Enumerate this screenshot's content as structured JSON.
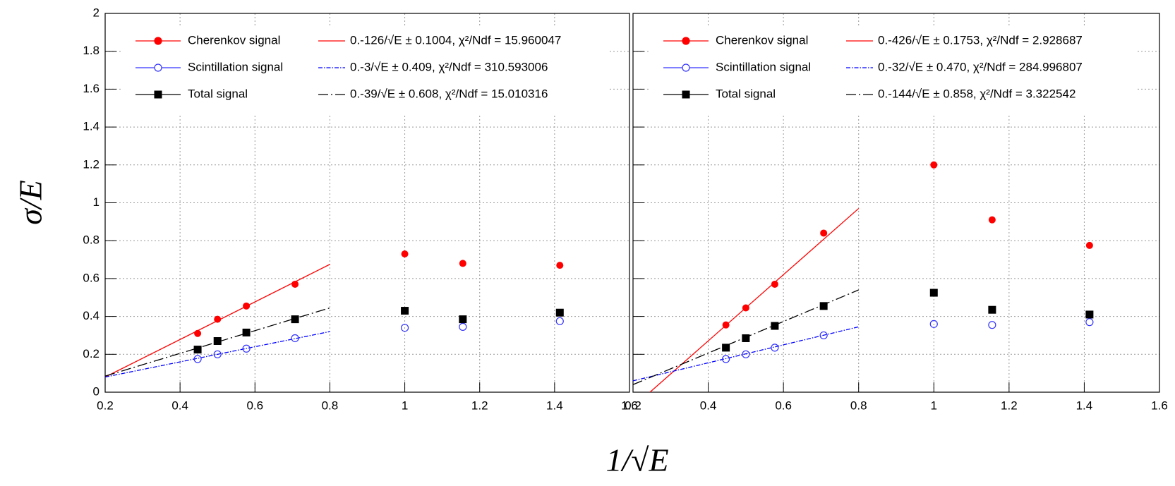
{
  "chart_data": [
    {
      "type": "scatter",
      "xlabel": "1/√E",
      "ylabel": "σ/E",
      "xlim": [
        0.2,
        1.6
      ],
      "ylim": [
        0,
        2
      ],
      "xticks": [
        0.2,
        0.4,
        0.6,
        0.8,
        1,
        1.2,
        1.4,
        1.6
      ],
      "yticks": [
        0,
        0.2,
        0.4,
        0.6,
        0.8,
        1,
        1.2,
        1.4,
        1.6,
        1.8,
        2
      ],
      "grid": true,
      "series": [
        {
          "name": "Cherenkov signal",
          "color": "#ff0000",
          "marker": "filled-circle",
          "x": [
            0.447,
            0.5,
            0.577,
            0.707,
            1.0,
            1.155,
            1.414
          ],
          "values": [
            0.31,
            0.385,
            0.455,
            0.57,
            0.73,
            0.68,
            0.67
          ]
        },
        {
          "name": "Scintillation signal",
          "color": "#3333ff",
          "marker": "open-circle",
          "x": [
            0.447,
            0.5,
            0.577,
            0.707,
            1.0,
            1.155,
            1.414
          ],
          "values": [
            0.175,
            0.2,
            0.23,
            0.285,
            0.34,
            0.345,
            0.375
          ]
        },
        {
          "name": "Total signal",
          "color": "#000000",
          "marker": "square",
          "x": [
            0.447,
            0.5,
            0.577,
            0.707,
            1.0,
            1.155,
            1.414
          ],
          "values": [
            0.225,
            0.27,
            0.315,
            0.385,
            0.43,
            0.385,
            0.42
          ]
        }
      ],
      "fits": [
        {
          "name": "0.-126/√E ± 0.1004, χ²/Ndf = 15.960047",
          "color": "#ff0000",
          "dash": "solid",
          "x": [
            0.2,
            0.8
          ],
          "values": [
            0.08,
            0.675
          ]
        },
        {
          "name": "0.-3/√E ± 0.409, χ²/Ndf = 310.593006",
          "color": "#0000ff",
          "dash": "dash-dot",
          "x": [
            0.2,
            0.8
          ],
          "values": [
            0.08,
            0.32
          ]
        },
        {
          "name": "0.-39/√E ± 0.608, χ²/Ndf = 15.010316",
          "color": "#000000",
          "dash": "long-dash-dot",
          "x": [
            0.2,
            0.8
          ],
          "values": [
            0.085,
            0.445
          ]
        }
      ]
    },
    {
      "type": "scatter",
      "xlim": [
        0.2,
        1.6
      ],
      "ylim": [
        0,
        2
      ],
      "xticks": [
        0.2,
        0.4,
        0.6,
        0.8,
        1,
        1.2,
        1.4,
        1.6
      ],
      "yticks": [
        0,
        0.2,
        0.4,
        0.6,
        0.8,
        1,
        1.2,
        1.4,
        1.6,
        1.8,
        2
      ],
      "grid": true,
      "series": [
        {
          "name": "Cherenkov signal",
          "color": "#ff0000",
          "marker": "filled-circle",
          "x": [
            0.447,
            0.5,
            0.577,
            0.707,
            1.0,
            1.155,
            1.414
          ],
          "values": [
            0.355,
            0.445,
            0.57,
            0.84,
            1.2,
            0.91,
            0.775
          ]
        },
        {
          "name": "Scintillation signal",
          "color": "#3333ff",
          "marker": "open-circle",
          "x": [
            0.447,
            0.5,
            0.577,
            0.707,
            1.0,
            1.155,
            1.414
          ],
          "values": [
            0.175,
            0.2,
            0.235,
            0.3,
            0.36,
            0.355,
            0.37
          ]
        },
        {
          "name": "Total signal",
          "color": "#000000",
          "marker": "square",
          "x": [
            0.447,
            0.5,
            0.577,
            0.707,
            1.0,
            1.155,
            1.414
          ],
          "values": [
            0.235,
            0.285,
            0.35,
            0.455,
            0.525,
            0.435,
            0.41
          ]
        }
      ],
      "fits": [
        {
          "name": "0.-426/√E ± 0.1753, χ²/Ndf = 2.928687",
          "color": "#ff0000",
          "dash": "solid",
          "x": [
            0.245,
            0.8
          ],
          "values": [
            0,
            0.97
          ]
        },
        {
          "name": "0.-32/√E ± 0.470, χ²/Ndf = 284.996807",
          "color": "#0000ff",
          "dash": "dash-dot",
          "x": [
            0.2,
            0.8
          ],
          "values": [
            0.06,
            0.345
          ]
        },
        {
          "name": "0.-144/√E ± 0.858, χ²/Ndf = 3.322542",
          "color": "#000000",
          "dash": "long-dash-dot",
          "x": [
            0.2,
            0.8
          ],
          "values": [
            0.04,
            0.54
          ]
        }
      ]
    }
  ]
}
